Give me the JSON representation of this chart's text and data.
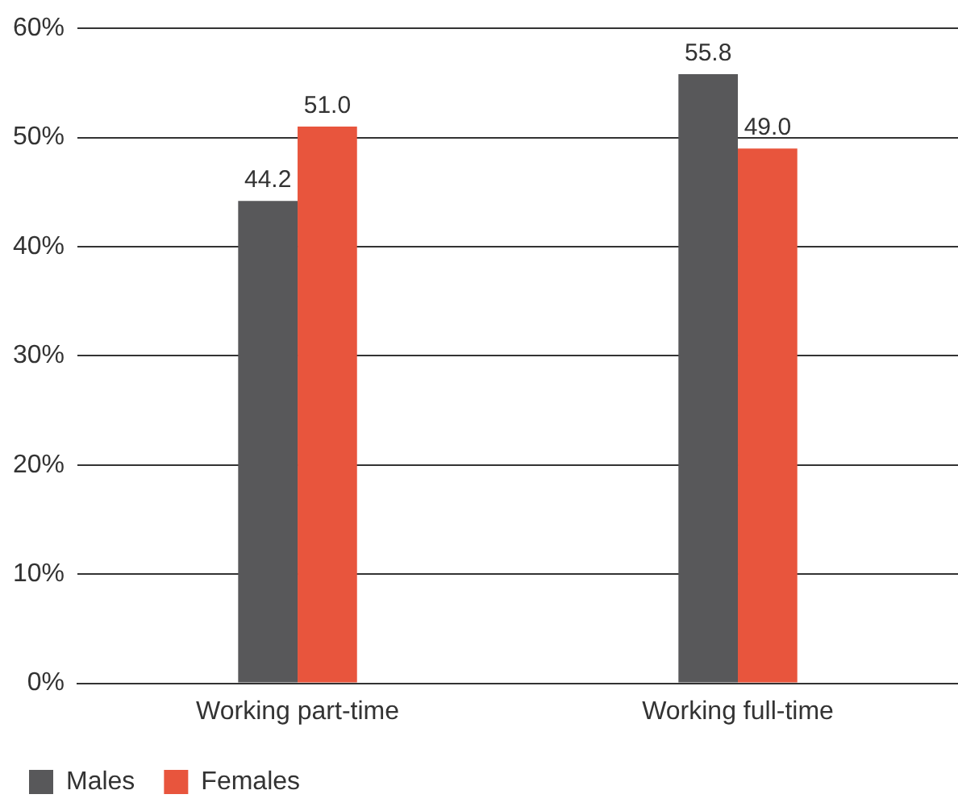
{
  "chart_data": {
    "type": "bar",
    "categories": [
      "Working part-time",
      "Working full-time"
    ],
    "series": [
      {
        "name": "Males",
        "color": "#58585a",
        "values": [
          44.2,
          55.8
        ],
        "value_labels": [
          "44.2",
          "55.8"
        ]
      },
      {
        "name": "Females",
        "color": "#e8553d",
        "values": [
          51.0,
          49.0
        ],
        "value_labels": [
          "51.0",
          "49.0"
        ]
      }
    ],
    "ylim": [
      0,
      60
    ],
    "yticks": [
      {
        "value": 0,
        "label": "0%"
      },
      {
        "value": 10,
        "label": "10%"
      },
      {
        "value": 20,
        "label": "20%"
      },
      {
        "value": 30,
        "label": "30%"
      },
      {
        "value": 40,
        "label": "40%"
      },
      {
        "value": 50,
        "label": "50%"
      },
      {
        "value": 60,
        "label": "60%"
      }
    ],
    "grid": "y",
    "legend": "bottom left"
  }
}
